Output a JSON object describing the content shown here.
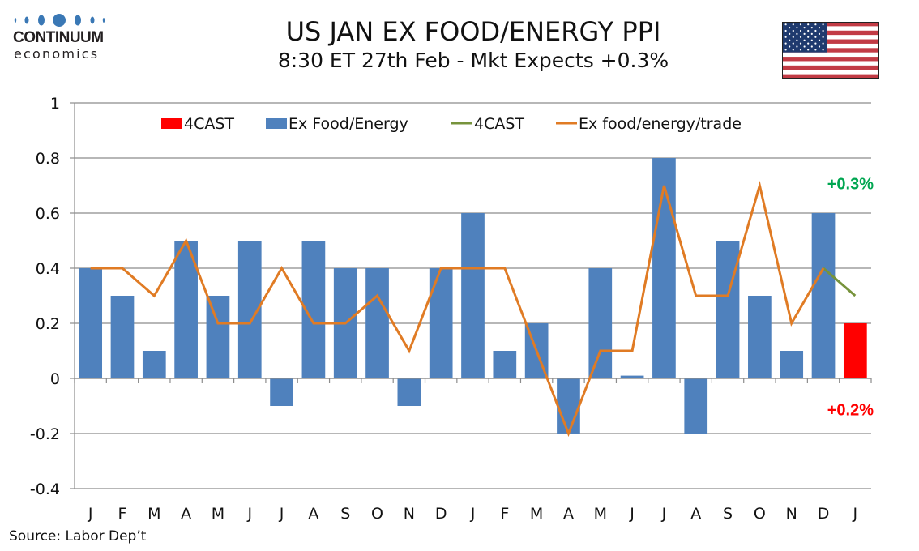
{
  "logo": {
    "name": "CONTINUUM",
    "sub": "economics",
    "color": "#3a78b5"
  },
  "header": {
    "title": "US JAN EX FOOD/ENERGY PPI",
    "subtitle": "8:30 ET 27th Feb - Mkt Expects +0.3%"
  },
  "flag": {
    "icon": "us-flag-icon"
  },
  "source": "Source: Labor Dep’t",
  "chart_data": {
    "type": "bar",
    "title": "US JAN EX FOOD/ENERGY PPI",
    "subtitle": "8:30 ET 27th Feb - Mkt Expects +0.3%",
    "xlabel": "",
    "ylabel": "",
    "ylim": [
      -0.4,
      1.0
    ],
    "yticks": [
      -0.4,
      -0.2,
      0,
      0.2,
      0.4,
      0.6,
      0.8,
      1
    ],
    "ytick_labels": [
      "-0.4",
      "-0.2",
      "0",
      "0.2",
      "0.4",
      "0.6",
      "0.8",
      "1"
    ],
    "grid": true,
    "legend_position": "top",
    "categories": [
      "J",
      "F",
      "M",
      "A",
      "M",
      "J",
      "J",
      "A",
      "S",
      "O",
      "N",
      "D",
      "J",
      "F",
      "M",
      "A",
      "M",
      "J",
      "J",
      "A",
      "S",
      "O",
      "N",
      "D",
      "J"
    ],
    "series": [
      {
        "name": "4CAST",
        "kind": "bar",
        "color": "#ff0000",
        "values": [
          null,
          null,
          null,
          null,
          null,
          null,
          null,
          null,
          null,
          null,
          null,
          null,
          null,
          null,
          null,
          null,
          null,
          null,
          null,
          null,
          null,
          null,
          null,
          null,
          0.2
        ]
      },
      {
        "name": "Ex Food/Energy",
        "kind": "bar",
        "color": "#4f81bd",
        "values": [
          0.4,
          0.3,
          0.1,
          0.5,
          0.3,
          0.5,
          -0.1,
          0.5,
          0.4,
          0.4,
          -0.1,
          0.4,
          0.6,
          0.1,
          0.2,
          -0.2,
          0.4,
          0.01,
          0.8,
          -0.2,
          0.5,
          0.3,
          0.1,
          0.6,
          null
        ]
      },
      {
        "name": "4CAST",
        "kind": "line",
        "color": "#77933c",
        "values": [
          null,
          null,
          null,
          null,
          null,
          null,
          null,
          null,
          null,
          null,
          null,
          null,
          null,
          null,
          null,
          null,
          null,
          null,
          null,
          null,
          null,
          null,
          null,
          0.4,
          0.3
        ]
      },
      {
        "name": "Ex food/energy/trade",
        "kind": "line",
        "color": "#e07b24",
        "values": [
          0.4,
          0.4,
          0.3,
          0.5,
          0.2,
          0.2,
          0.4,
          0.2,
          0.2,
          0.3,
          0.1,
          0.4,
          0.4,
          0.4,
          0.1,
          -0.2,
          0.1,
          0.1,
          0.7,
          0.3,
          0.3,
          0.7,
          0.2,
          0.4,
          null
        ]
      }
    ],
    "annotations": [
      {
        "text": "+0.3%",
        "color": "#00a651",
        "anchor_category_index": 24,
        "anchor_value": 0.71
      },
      {
        "text": "+0.2%",
        "color": "#ff0000",
        "anchor_category_index": 24,
        "anchor_value": -0.11
      }
    ]
  }
}
